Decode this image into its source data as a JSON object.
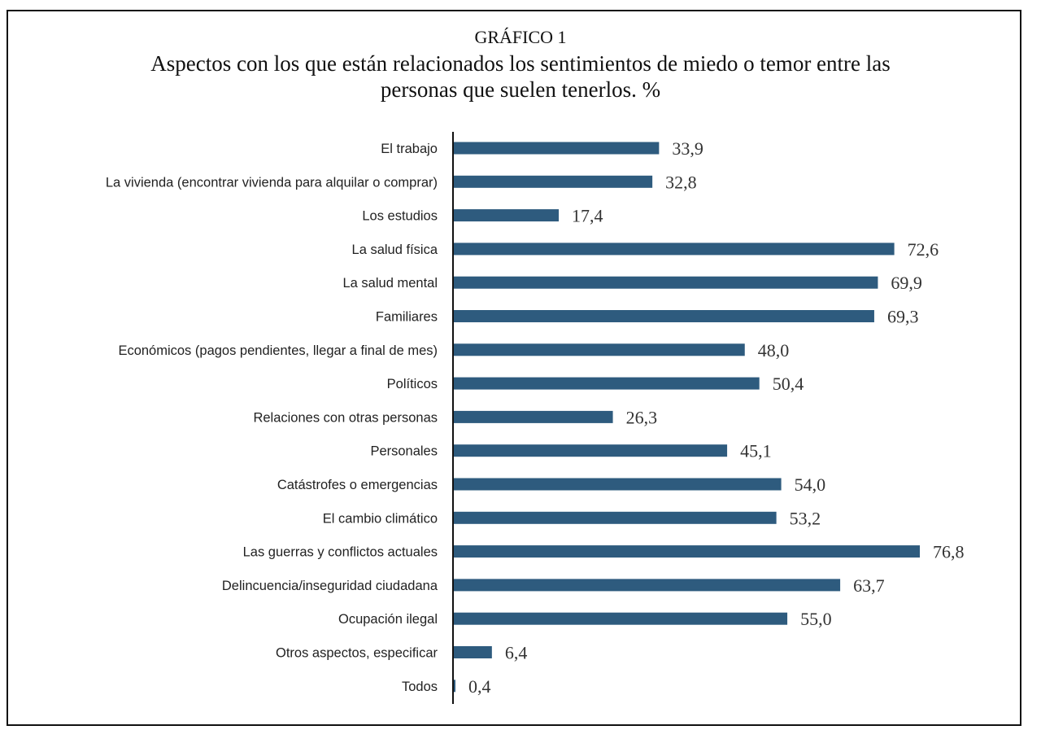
{
  "chart_data": {
    "type": "bar",
    "orientation": "horizontal",
    "supertitle": "GRÁFICO 1",
    "title": "Aspectos con los que están relacionados los sentimientos de miedo o temor entre las personas que suelen tenerlos. %",
    "categories": [
      "El trabajo",
      "La vivienda (encontrar vivienda para alquilar o comprar)",
      "Los estudios",
      "La salud física",
      "La salud mental",
      "Familiares",
      "Económicos (pagos pendientes, llegar a final de mes)",
      "Políticos",
      "Relaciones con otras personas",
      "Personales",
      "Catástrofes o emergencias",
      "El cambio climático",
      "Las guerras y conflictos actuales",
      "Delincuencia/inseguridad ciudadana",
      "Ocupación ilegal",
      "Otros aspectos, especificar",
      "Todos"
    ],
    "values": [
      33.9,
      32.8,
      17.4,
      72.6,
      69.9,
      69.3,
      48.0,
      50.4,
      26.3,
      45.1,
      54.0,
      53.2,
      76.8,
      63.7,
      55.0,
      6.4,
      0.4
    ],
    "value_labels": [
      "33,9",
      "32,8",
      "17,4",
      "72,6",
      "69,9",
      "69,3",
      "48,0",
      "50,4",
      "26,3",
      "45,1",
      "54,0",
      "53,2",
      "76,8",
      "63,7",
      "55,0",
      "6,4",
      "0,4"
    ],
    "xlim": [
      0,
      80
    ],
    "grid": false,
    "legend": "none",
    "bar_color": "#2e5b7e"
  }
}
